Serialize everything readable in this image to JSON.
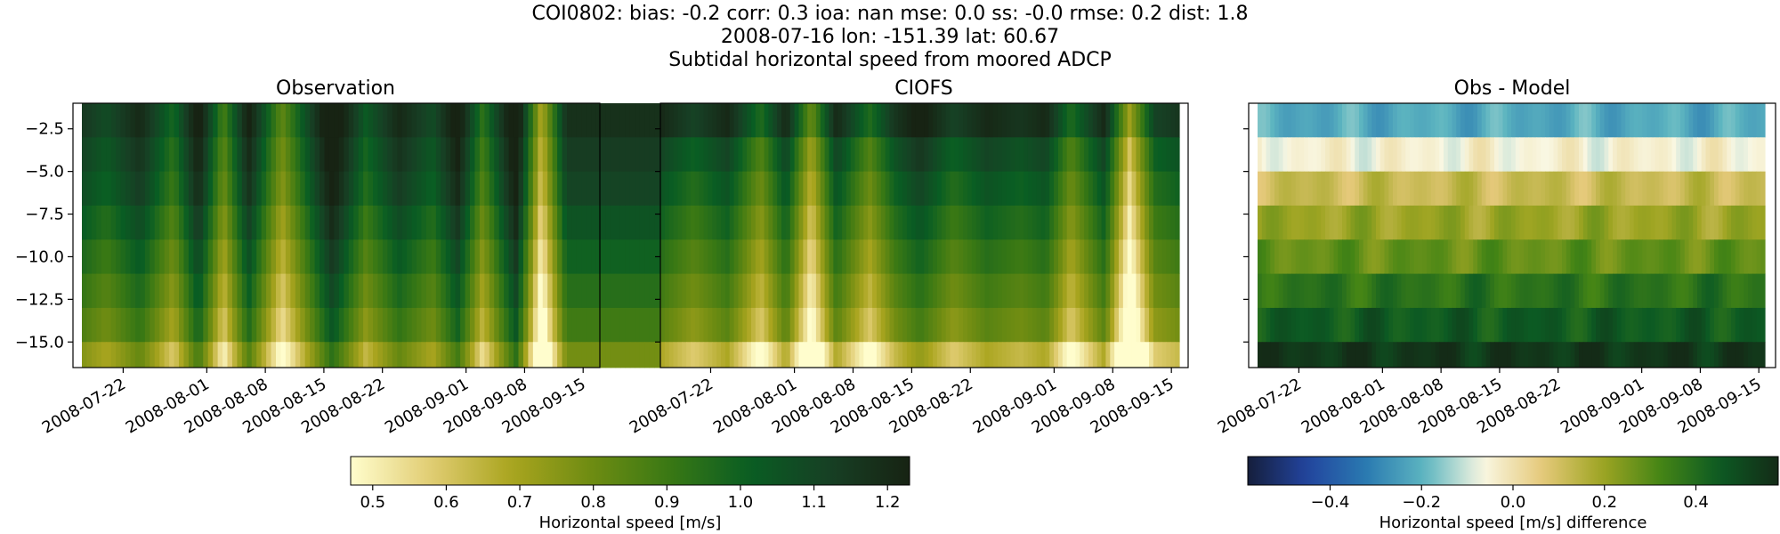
{
  "figure": {
    "title_lines": [
      "COI0802: bias: -0.2  corr: 0.3  ioa: nan  mse: 0.0  ss: -0.0  rmse: 0.2  dist: 1.8",
      "2008-07-16 lon: -151.39 lat: 60.67",
      "Subtidal horizontal speed from moored ADCP"
    ]
  },
  "chart_data": [
    {
      "type": "heatmap",
      "title": "Observation",
      "ylabel": "",
      "ylim": [
        -16.5,
        -1.0
      ],
      "yticks": [
        -2.5,
        -5.0,
        -7.5,
        -10.0,
        -12.5,
        -15.0
      ],
      "ytick_labels": [
        "−2.5",
        "−5.0",
        "−7.5",
        "−10.0",
        "−12.5",
        "−15.0"
      ],
      "xlim": [
        "2008-07-16",
        "2008-09-17"
      ],
      "xticks": [
        "2008-07-22",
        "2008-08-01",
        "2008-08-08",
        "2008-08-15",
        "2008-08-22",
        "2008-09-01",
        "2008-09-08",
        "2008-09-15"
      ],
      "depth_centers": [
        -2.0,
        -4.0,
        -6.0,
        -8.0,
        -10.0,
        -12.0,
        -14.0,
        -15.5
      ],
      "colormap": "speed",
      "vmin": 0.47,
      "vmax": 1.23,
      "time_profile_days": [
        0,
        4,
        8,
        12,
        15,
        18,
        21,
        25,
        28,
        31,
        35,
        39,
        43,
        46,
        49,
        53,
        56,
        59,
        62
      ],
      "time_profile_values": [
        1.05,
        0.95,
        1.08,
        0.85,
        1.15,
        0.75,
        1.12,
        0.7,
        0.95,
        1.2,
        0.9,
        1.08,
        0.95,
        1.15,
        0.8,
        1.2,
        0.55,
        1.05,
        1.05
      ],
      "depth_offset": [
        0.12,
        0.08,
        0.05,
        0.0,
        -0.05,
        -0.1,
        -0.15,
        -0.25
      ]
    },
    {
      "type": "heatmap",
      "title": "CIOFS",
      "ylim": [
        -16.5,
        -1.0
      ],
      "xlim": [
        "2008-07-16",
        "2008-09-17"
      ],
      "xticks": [
        "2008-07-22",
        "2008-08-01",
        "2008-08-08",
        "2008-08-15",
        "2008-08-22",
        "2008-09-01",
        "2008-09-08",
        "2008-09-15"
      ],
      "depth_centers": [
        -2.0,
        -4.0,
        -6.0,
        -8.0,
        -10.0,
        -12.0,
        -14.0,
        -15.5
      ],
      "colormap": "speed",
      "vmin": 0.47,
      "vmax": 1.23,
      "time_profile_days": [
        0,
        4,
        8,
        12,
        15,
        18,
        21,
        25,
        28,
        31,
        35,
        39,
        43,
        46,
        49,
        53,
        56,
        59,
        62
      ],
      "time_profile_values": [
        1.05,
        0.95,
        1.05,
        0.8,
        1.05,
        0.65,
        1.05,
        0.8,
        1.0,
        1.1,
        0.95,
        1.05,
        1.0,
        1.05,
        0.8,
        1.05,
        0.55,
        0.95,
        1.0
      ],
      "depth_offset": [
        0.15,
        0.05,
        0.0,
        -0.05,
        -0.1,
        -0.15,
        -0.2,
        -0.35
      ]
    },
    {
      "type": "heatmap",
      "title": "Obs - Model",
      "ylim": [
        -16.5,
        -1.0
      ],
      "xlim": [
        "2008-07-16",
        "2008-09-17"
      ],
      "xticks": [
        "2008-07-22",
        "2008-08-01",
        "2008-08-08",
        "2008-08-15",
        "2008-08-22",
        "2008-09-01",
        "2008-09-08",
        "2008-09-15"
      ],
      "depth_centers": [
        -2.0,
        -4.0,
        -6.0,
        -8.0,
        -10.0,
        -12.0,
        -14.0,
        -15.5
      ],
      "colormap": "diff",
      "vmin": -0.58,
      "vmax": 0.58,
      "depth_base": [
        -0.22,
        -0.05,
        0.12,
        0.2,
        0.28,
        0.38,
        0.45,
        0.55
      ],
      "time_variation_amplitude": 0.06
    }
  ],
  "colorbars": [
    {
      "label": "Horizontal speed [m/s]",
      "colormap": "speed",
      "vmin": 0.47,
      "vmax": 1.23,
      "ticks": [
        0.5,
        0.6,
        0.7,
        0.8,
        0.9,
        1.0,
        1.1,
        1.2
      ],
      "tick_labels": [
        "0.5",
        "0.6",
        "0.7",
        "0.8",
        "0.9",
        "1.0",
        "1.1",
        "1.2"
      ]
    },
    {
      "label": "Horizontal speed [m/s] difference",
      "colormap": "diff",
      "vmin": -0.58,
      "vmax": 0.58,
      "ticks": [
        -0.4,
        -0.2,
        0.0,
        0.2,
        0.4
      ],
      "tick_labels": [
        "−0.4",
        "−0.2",
        "0.0",
        "0.2",
        "0.4"
      ]
    }
  ],
  "colormaps": {
    "speed": [
      "#fffdcd",
      "#e1cd73",
      "#aaa51f",
      "#6f8c12",
      "#397814",
      "#095d23",
      "#173f24",
      "#172313"
    ],
    "diff": [
      "#151e3c",
      "#22449e",
      "#2a7ab1",
      "#5db5c0",
      "#f9f7e2",
      "#e5c97a",
      "#9fa523",
      "#458515",
      "#0c5a23",
      "#142b17"
    ]
  }
}
